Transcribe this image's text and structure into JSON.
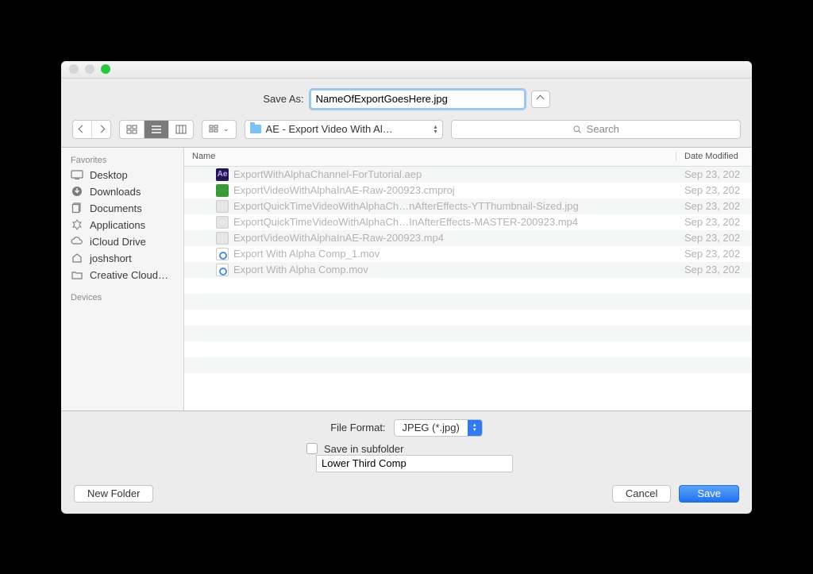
{
  "saveAs": {
    "label": "Save As:",
    "value": "NameOfExportGoesHere.jpg"
  },
  "folderDropdown": "AE - Export Video With Al…",
  "searchPlaceholder": "Search",
  "sidebar": {
    "favoritesLabel": "Favorites",
    "devicesLabel": "Devices",
    "items": [
      {
        "label": "Desktop"
      },
      {
        "label": "Downloads"
      },
      {
        "label": "Documents"
      },
      {
        "label": "Applications"
      },
      {
        "label": "iCloud Drive"
      },
      {
        "label": "joshshort"
      },
      {
        "label": "Creative Cloud…"
      }
    ]
  },
  "columns": {
    "name": "Name",
    "date": "Date Modified"
  },
  "files": [
    {
      "icon": "aep",
      "name": "ExportWithAlphaChannel-ForTutorial.aep",
      "date": "Sep 23, 202"
    },
    {
      "icon": "cm",
      "name": "ExportVideoWithAlphaInAE-Raw-200923.cmproj",
      "date": "Sep 23, 202"
    },
    {
      "icon": "jpg",
      "name": "ExportQuickTimeVideoWithAlphaCh…nAfterEffects-YTThumbnail-Sized.jpg",
      "date": "Sep 23, 202"
    },
    {
      "icon": "mp4",
      "name": "ExportQuickTimeVideoWithAlphaCh…InAfterEffects-MASTER-200923.mp4",
      "date": "Sep 23, 202"
    },
    {
      "icon": "mp4",
      "name": "ExportVideoWithAlphaInAE-Raw-200923.mp4",
      "date": "Sep 23, 202"
    },
    {
      "icon": "mov",
      "name": "Export With Alpha Comp_1.mov",
      "date": "Sep 23, 202"
    },
    {
      "icon": "mov",
      "name": "Export With Alpha Comp.mov",
      "date": "Sep 23, 202"
    }
  ],
  "fileFormat": {
    "label": "File Format:",
    "value": "JPEG (*.jpg)"
  },
  "subfolder": {
    "label": "Save in subfolder",
    "value": "Lower Third Comp"
  },
  "buttons": {
    "newFolder": "New Folder",
    "cancel": "Cancel",
    "save": "Save"
  }
}
